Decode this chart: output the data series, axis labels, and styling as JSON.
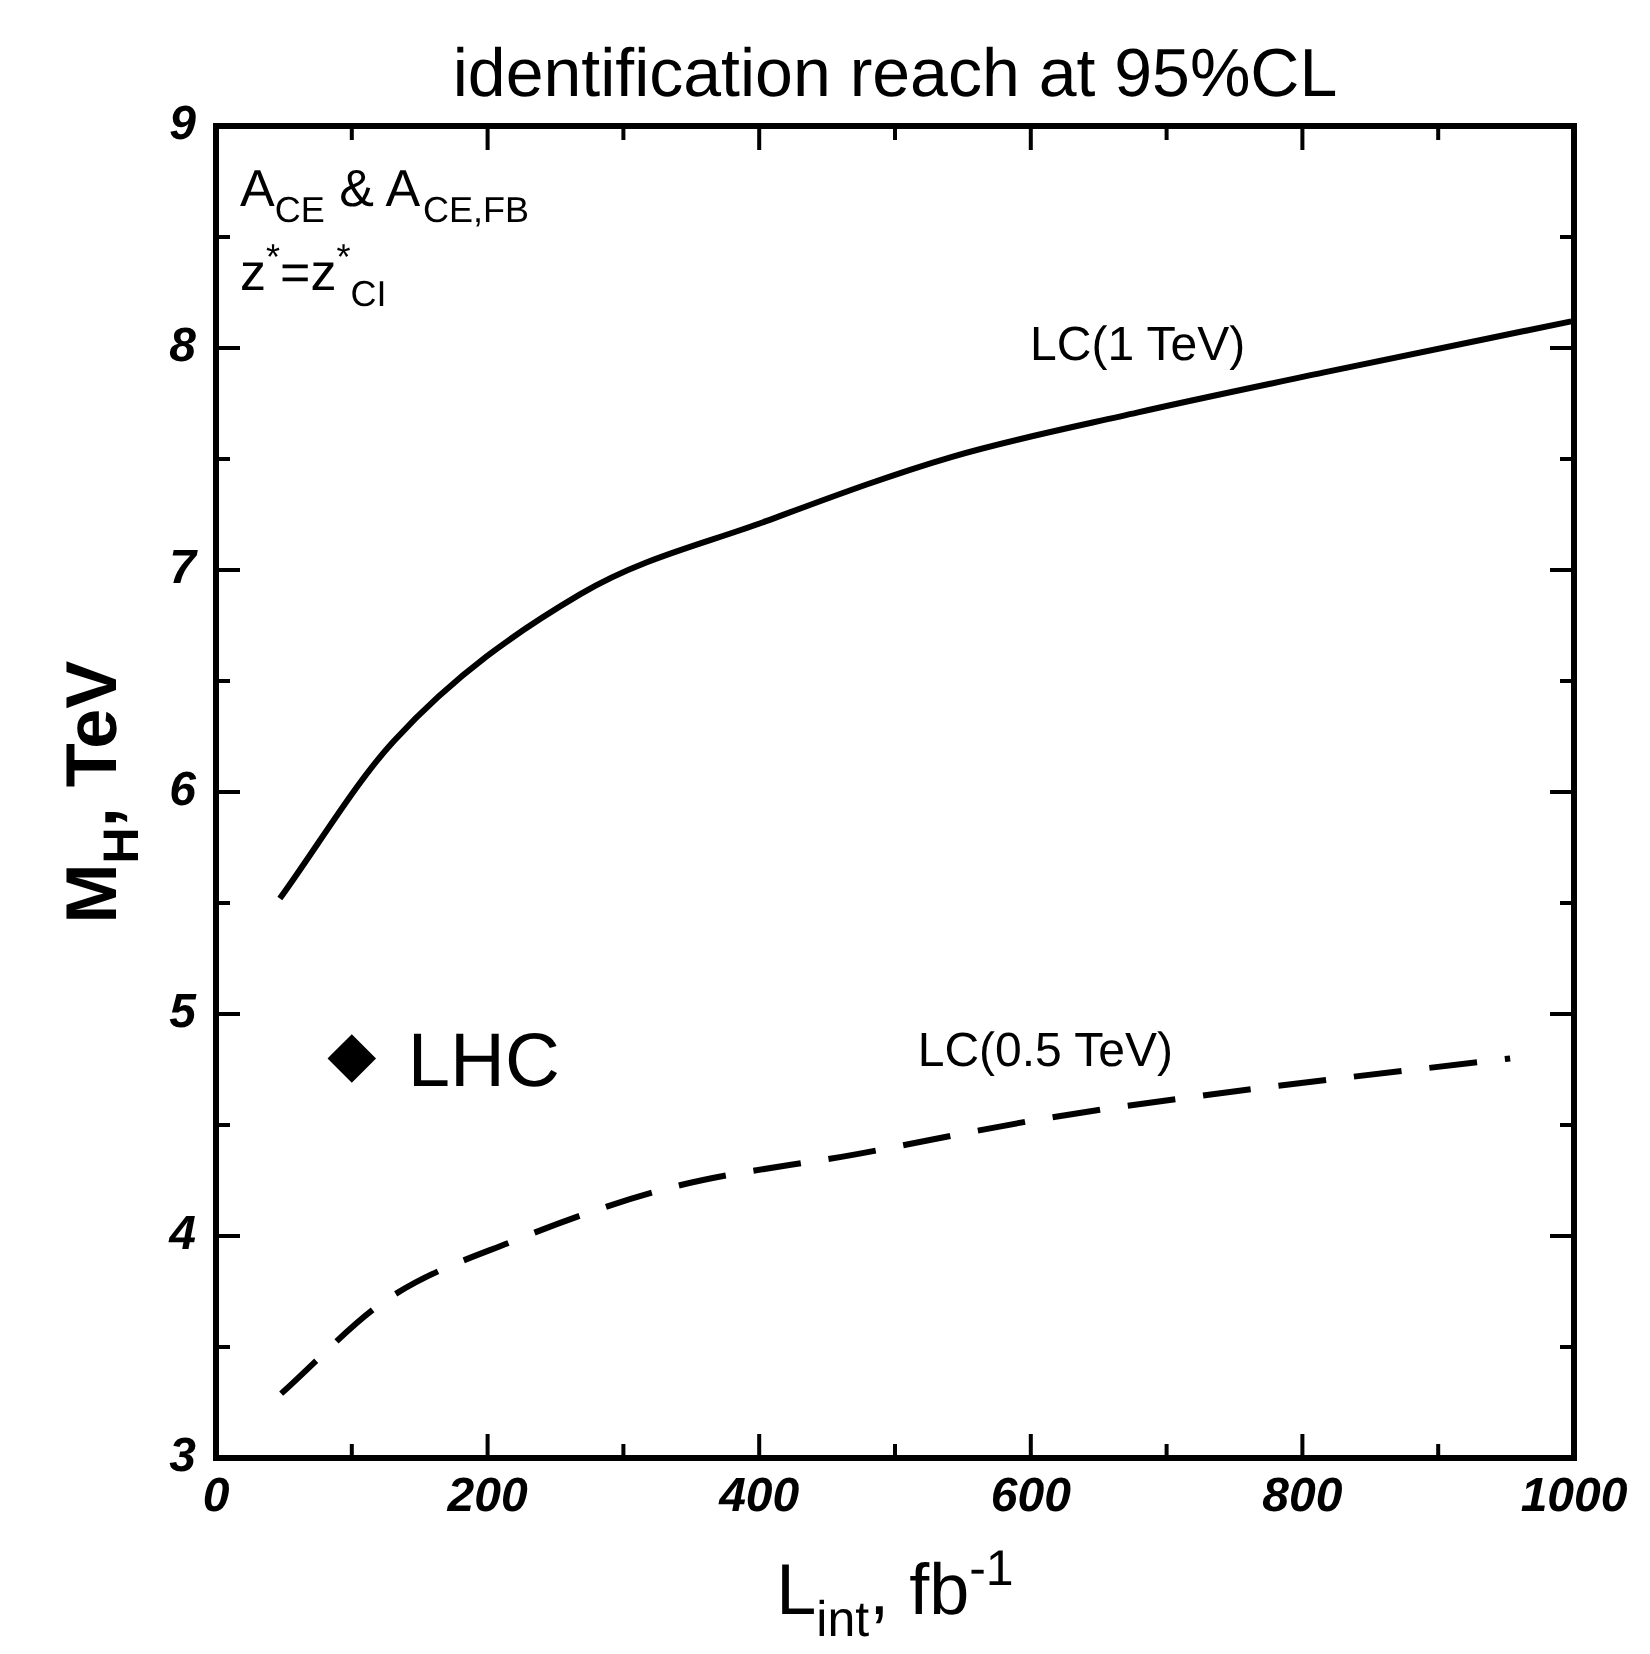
{
  "chart_data": {
    "type": "line",
    "title": "identification reach at 95%CL",
    "xlabel": "L$_{int}$, fb$^{-1}$",
    "ylabel": "M$_{H}$, TeV",
    "annotations": [
      "A$_{CE}$ & A$_{CE,FB}$",
      "z$^{*}$=z$^{*}$$_{CI}$"
    ],
    "xlim": [
      0,
      1000
    ],
    "ylim": [
      3,
      9
    ],
    "xticks": [
      0,
      {
        "value": 100,
        "label": null
      },
      200,
      {
        "value": 300,
        "label": null
      },
      400,
      {
        "value": 500,
        "label": null
      },
      600,
      {
        "value": 700,
        "label": null
      },
      800,
      {
        "value": 900,
        "label": null
      },
      1000
    ],
    "yticks": [
      3,
      {
        "value": 3.5,
        "label": null
      },
      4,
      {
        "value": 4.5,
        "label": null
      },
      5,
      {
        "value": 5.5,
        "label": null
      },
      6,
      {
        "value": 6.5,
        "label": null
      },
      7,
      {
        "value": 7.5,
        "label": null
      },
      8,
      {
        "value": 8.5,
        "label": null
      },
      9
    ],
    "grid": false,
    "legend": false,
    "series": [
      {
        "name": "LC(1 TeV)",
        "color": "#000000",
        "line_style": "solid",
        "marker": "none",
        "x": [
          47,
          131,
          268,
          405,
          542,
          679,
          816,
          998
        ],
        "values": [
          5.52,
          6.23,
          6.89,
          7.22,
          7.51,
          7.71,
          7.89,
          8.12
        ]
      },
      {
        "name": "LC(0.5 TeV)",
        "color": "#000000",
        "line_style": "dashed",
        "marker": "none",
        "x": [
          48,
          125,
          220,
          336,
          473,
          611,
          748,
          953
        ],
        "values": [
          3.29,
          3.71,
          3.98,
          4.22,
          4.37,
          4.53,
          4.65,
          4.8
        ]
      },
      {
        "name": "LHC",
        "type": "scatter",
        "color": "#000000",
        "marker": "diamond",
        "x": [
          100
        ],
        "values": [
          4.8
        ]
      }
    ]
  }
}
